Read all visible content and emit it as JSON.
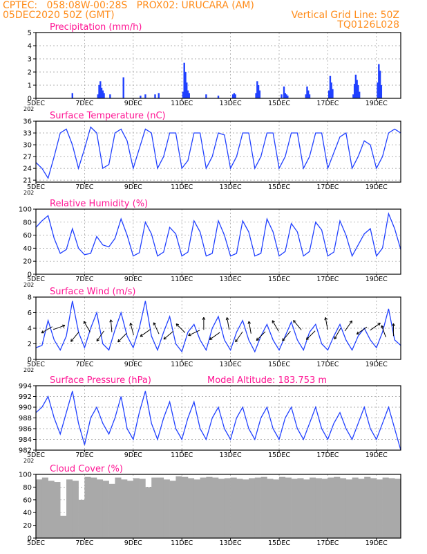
{
  "header": {
    "line1": "CPTEC:   058:08W-00:28S   PROX02: URUCARA (AM)",
    "line2": "05DEC2020 50Z (GMT)",
    "grid_note": "Vertical Grid Line: 50Z",
    "code": "TQ0126L028",
    "color": "#ff8c1a"
  },
  "colors": {
    "title": "#ff1493",
    "line": "#2040ff",
    "bar": "#2040ff",
    "cloud": "#a9a9a9",
    "grid": "#999999"
  },
  "x_ticks": [
    "5DEC",
    "7DEC",
    "9DEC",
    "11DEC",
    "13DEC",
    "15DEC",
    "17DEC",
    "19DEC"
  ],
  "x_tick_sub": "202",
  "chart_data": [
    {
      "type": "bar",
      "title": "Precipitation (mm/h)",
      "ylim": [
        0,
        5
      ],
      "yticks": [
        0,
        1,
        2,
        3,
        4,
        5
      ],
      "x": [
        1.5,
        2.55,
        2.6,
        2.65,
        2.7,
        2.75,
        2.8,
        3.05,
        3.6,
        4.3,
        4.5,
        4.9,
        5.05,
        6.05,
        6.1,
        6.15,
        6.2,
        6.25,
        6.3,
        7.0,
        7.5,
        8.1,
        8.15,
        8.2,
        9.05,
        9.1,
        9.15,
        9.2,
        10.1,
        10.2,
        10.25,
        10.3,
        10.35,
        11.1,
        11.15,
        11.2,
        11.25,
        12.05,
        12.1,
        12.15,
        12.2,
        13.05,
        13.1,
        13.15,
        13.2,
        13.25,
        13.3,
        14.05,
        14.1,
        14.15,
        14.2
      ],
      "values": [
        0.4,
        0.3,
        1.0,
        1.3,
        0.8,
        0.6,
        0.4,
        0.3,
        1.6,
        0.2,
        0.3,
        0.3,
        0.4,
        0.5,
        2.7,
        2.0,
        1.2,
        0.6,
        0.4,
        0.3,
        0.2,
        0.3,
        0.4,
        0.3,
        0.4,
        1.3,
        1.0,
        0.6,
        0.3,
        0.9,
        0.4,
        0.3,
        0.2,
        0.3,
        0.9,
        0.6,
        0.3,
        0.6,
        1.7,
        1.2,
        0.7,
        0.3,
        1.1,
        1.8,
        1.4,
        1.0,
        0.5,
        1.2,
        2.6,
        2.1,
        1.0
      ]
    },
    {
      "type": "line",
      "title": "Surface Temperature (nC)",
      "ylim": [
        20.5,
        36
      ],
      "yticks": [
        21,
        24,
        27,
        30,
        33,
        36
      ],
      "x": [
        0,
        0.25,
        0.5,
        0.75,
        1.0,
        1.25,
        1.5,
        1.75,
        2.0,
        2.25,
        2.5,
        2.75,
        3.0,
        3.25,
        3.5,
        3.75,
        4.0,
        4.25,
        4.5,
        4.75,
        5.0,
        5.25,
        5.5,
        5.75,
        6.0,
        6.25,
        6.5,
        6.75,
        7.0,
        7.25,
        7.5,
        7.75,
        8.0,
        8.25,
        8.5,
        8.75,
        9.0,
        9.25,
        9.5,
        9.75,
        10.0,
        10.25,
        10.5,
        10.75,
        11.0,
        11.25,
        11.5,
        11.75,
        12.0,
        12.25,
        12.5,
        12.75,
        13.0,
        13.25,
        13.5,
        13.75,
        14.0,
        14.25,
        14.5,
        14.75,
        15.0
      ],
      "y": [
        25.5,
        24,
        21.5,
        27,
        33,
        34,
        30,
        24,
        29,
        34.5,
        33,
        24,
        25,
        33,
        34,
        31,
        24,
        29,
        34,
        33,
        24,
        27,
        33,
        33,
        24,
        26,
        33,
        33,
        24,
        27,
        33,
        32.5,
        24,
        27,
        33,
        33,
        24,
        27,
        33,
        33,
        24,
        27,
        33,
        33,
        24,
        27,
        33,
        33,
        24,
        28,
        32,
        33,
        24,
        27,
        31,
        30,
        24,
        27,
        33,
        34,
        33
      ]
    },
    {
      "type": "line",
      "title": "Relative Humidity (%)",
      "ylim": [
        0,
        100
      ],
      "yticks": [
        0,
        20,
        40,
        60,
        80,
        100
      ],
      "x": [
        0,
        0.25,
        0.5,
        0.75,
        1.0,
        1.25,
        1.5,
        1.75,
        2.0,
        2.25,
        2.5,
        2.75,
        3.0,
        3.25,
        3.5,
        3.75,
        4.0,
        4.25,
        4.5,
        4.75,
        5.0,
        5.25,
        5.5,
        5.75,
        6.0,
        6.25,
        6.5,
        6.75,
        7.0,
        7.25,
        7.5,
        7.75,
        8.0,
        8.25,
        8.5,
        8.75,
        9.0,
        9.25,
        9.5,
        9.75,
        10.0,
        10.25,
        10.5,
        10.75,
        11.0,
        11.25,
        11.5,
        11.75,
        12.0,
        12.25,
        12.5,
        12.75,
        13.0,
        13.25,
        13.5,
        13.75,
        14.0,
        14.25,
        14.5,
        14.75,
        15.0
      ],
      "y": [
        72,
        82,
        90,
        55,
        32,
        38,
        70,
        40,
        30,
        32,
        58,
        45,
        42,
        55,
        85,
        60,
        28,
        33,
        80,
        62,
        28,
        34,
        72,
        62,
        28,
        34,
        82,
        65,
        28,
        32,
        82,
        60,
        28,
        32,
        82,
        65,
        28,
        32,
        85,
        65,
        28,
        35,
        78,
        65,
        28,
        35,
        80,
        68,
        28,
        34,
        82,
        60,
        28,
        45,
        62,
        70,
        28,
        40,
        93,
        70,
        38
      ]
    },
    {
      "type": "line",
      "title": "Surface Wind (m/s)",
      "ylim": [
        0,
        8
      ],
      "yticks": [
        0,
        2,
        4,
        6,
        8
      ],
      "x": [
        0,
        0.25,
        0.5,
        0.75,
        1.0,
        1.25,
        1.5,
        1.75,
        2.0,
        2.25,
        2.5,
        2.75,
        3.0,
        3.25,
        3.5,
        3.75,
        4.0,
        4.25,
        4.5,
        4.75,
        5.0,
        5.25,
        5.5,
        5.75,
        6.0,
        6.25,
        6.5,
        6.75,
        7.0,
        7.25,
        7.5,
        7.75,
        8.0,
        8.25,
        8.5,
        8.75,
        9.0,
        9.25,
        9.5,
        9.75,
        10.0,
        10.25,
        10.5,
        10.75,
        11.0,
        11.25,
        11.5,
        11.75,
        12.0,
        12.25,
        12.5,
        12.75,
        13.0,
        13.25,
        13.5,
        13.75,
        14.0,
        14.25,
        14.5,
        14.75,
        15.0
      ],
      "y": [
        1.5,
        1.8,
        5.0,
        2.5,
        1.2,
        3.0,
        7.5,
        3.5,
        1.5,
        4.0,
        6.0,
        2.0,
        1.2,
        3.8,
        6.0,
        3.0,
        1.5,
        4.0,
        7.5,
        3.0,
        1.2,
        3.5,
        5.5,
        2.0,
        1.0,
        3.5,
        4.5,
        2.5,
        1.2,
        4.0,
        5.5,
        2.5,
        1.2,
        3.5,
        5.0,
        2.5,
        1.0,
        3.0,
        4.5,
        2.5,
        1.2,
        3.0,
        4.8,
        2.5,
        1.2,
        3.5,
        4.5,
        2.0,
        1.2,
        3.0,
        4.5,
        2.5,
        1.2,
        3.0,
        4.0,
        2.5,
        1.5,
        3.5,
        6.5,
        2.5,
        1.8
      ],
      "arrows": [
        {
          "x": 0.45,
          "y": 3.8,
          "angle": 210
        },
        {
          "x": 0.95,
          "y": 4.1,
          "angle": 20
        },
        {
          "x": 1.6,
          "y": 2.9,
          "angle": 230
        },
        {
          "x": 2.1,
          "y": 4.2,
          "angle": 120
        },
        {
          "x": 2.65,
          "y": 3.0,
          "angle": 235
        },
        {
          "x": 3.1,
          "y": 4.3,
          "angle": 95
        },
        {
          "x": 3.55,
          "y": 2.8,
          "angle": 225
        },
        {
          "x": 3.95,
          "y": 3.9,
          "angle": 105
        },
        {
          "x": 4.5,
          "y": 3.4,
          "angle": 215
        },
        {
          "x": 4.95,
          "y": 4.0,
          "angle": 115
        },
        {
          "x": 5.45,
          "y": 3.1,
          "angle": 220
        },
        {
          "x": 5.95,
          "y": 4.0,
          "angle": 135
        },
        {
          "x": 6.5,
          "y": 3.4,
          "angle": 205
        },
        {
          "x": 6.9,
          "y": 4.6,
          "angle": 90
        },
        {
          "x": 7.35,
          "y": 3.0,
          "angle": 215
        },
        {
          "x": 7.9,
          "y": 4.6,
          "angle": 100
        },
        {
          "x": 8.35,
          "y": 2.9,
          "angle": 235
        },
        {
          "x": 8.8,
          "y": 4.1,
          "angle": 100
        },
        {
          "x": 9.25,
          "y": 3.0,
          "angle": 225
        },
        {
          "x": 9.85,
          "y": 4.3,
          "angle": 120
        },
        {
          "x": 10.3,
          "y": 3.0,
          "angle": 230
        },
        {
          "x": 10.75,
          "y": 4.4,
          "angle": 130
        },
        {
          "x": 11.3,
          "y": 3.1,
          "angle": 225
        },
        {
          "x": 11.95,
          "y": 4.6,
          "angle": 100
        },
        {
          "x": 12.4,
          "y": 3.3,
          "angle": 240
        },
        {
          "x": 12.85,
          "y": 4.3,
          "angle": 55
        },
        {
          "x": 13.4,
          "y": 3.7,
          "angle": 215
        },
        {
          "x": 13.95,
          "y": 4.2,
          "angle": 35
        },
        {
          "x": 14.3,
          "y": 3.6,
          "angle": 110
        },
        {
          "x": 14.7,
          "y": 3.8,
          "angle": 90
        }
      ]
    },
    {
      "type": "line",
      "title": "Surface Pressure (hPa)",
      "annotation": "Model Altitude: 183.753 m",
      "ylim": [
        982,
        994
      ],
      "yticks": [
        982,
        984,
        986,
        988,
        990,
        992,
        994
      ],
      "x": [
        0,
        0.25,
        0.5,
        0.75,
        1.0,
        1.25,
        1.5,
        1.75,
        2.0,
        2.25,
        2.5,
        2.75,
        3.0,
        3.25,
        3.5,
        3.75,
        4.0,
        4.25,
        4.5,
        4.75,
        5.0,
        5.25,
        5.5,
        5.75,
        6.0,
        6.25,
        6.5,
        6.75,
        7.0,
        7.25,
        7.5,
        7.75,
        8.0,
        8.25,
        8.5,
        8.75,
        9.0,
        9.25,
        9.5,
        9.75,
        10.0,
        10.25,
        10.5,
        10.75,
        11.0,
        11.25,
        11.5,
        11.75,
        12.0,
        12.25,
        12.5,
        12.75,
        13.0,
        13.25,
        13.5,
        13.75,
        14.0,
        14.25,
        14.5,
        14.75,
        15.0
      ],
      "y": [
        989,
        990,
        992,
        988,
        985,
        989,
        993,
        987,
        983,
        988,
        990,
        987,
        985,
        988,
        992,
        986,
        984,
        989,
        993,
        987,
        984,
        988,
        991,
        986,
        984,
        988,
        991,
        986,
        984,
        988,
        990,
        986,
        984,
        988,
        990,
        986,
        984,
        988,
        990,
        986,
        984,
        988,
        990,
        986,
        984,
        987,
        990,
        986,
        984,
        987,
        989,
        986,
        984,
        987,
        990,
        986,
        984,
        987,
        990,
        986,
        982
      ]
    },
    {
      "type": "bar",
      "title": "Cloud Cover (%)",
      "ylim": [
        0,
        100
      ],
      "yticks": [
        0,
        20,
        40,
        60,
        80,
        100
      ],
      "x": [
        0,
        0.25,
        0.5,
        0.75,
        1.0,
        1.25,
        1.5,
        1.75,
        2.0,
        2.25,
        2.5,
        2.75,
        3.0,
        3.25,
        3.5,
        3.75,
        4.0,
        4.25,
        4.5,
        4.75,
        5.0,
        5.25,
        5.5,
        5.75,
        6.0,
        6.25,
        6.5,
        6.75,
        7.0,
        7.25,
        7.5,
        7.75,
        8.0,
        8.25,
        8.5,
        8.75,
        9.0,
        9.25,
        9.5,
        9.75,
        10.0,
        10.25,
        10.5,
        10.75,
        11.0,
        11.25,
        11.5,
        11.75,
        12.0,
        12.25,
        12.5,
        12.75,
        13.0,
        13.25,
        13.5,
        13.75,
        14.0,
        14.25,
        14.5,
        14.75
      ],
      "values": [
        92,
        95,
        90,
        88,
        35,
        92,
        90,
        60,
        96,
        95,
        92,
        90,
        85,
        95,
        92,
        90,
        94,
        93,
        80,
        95,
        95,
        92,
        90,
        97,
        96,
        94,
        92,
        95,
        96,
        95,
        93,
        94,
        95,
        93,
        92,
        94,
        95,
        96,
        93,
        92,
        96,
        95,
        93,
        94,
        92,
        95,
        94,
        93,
        95,
        96,
        94,
        92,
        95,
        93,
        96,
        94,
        92,
        95,
        94,
        93
      ]
    }
  ]
}
